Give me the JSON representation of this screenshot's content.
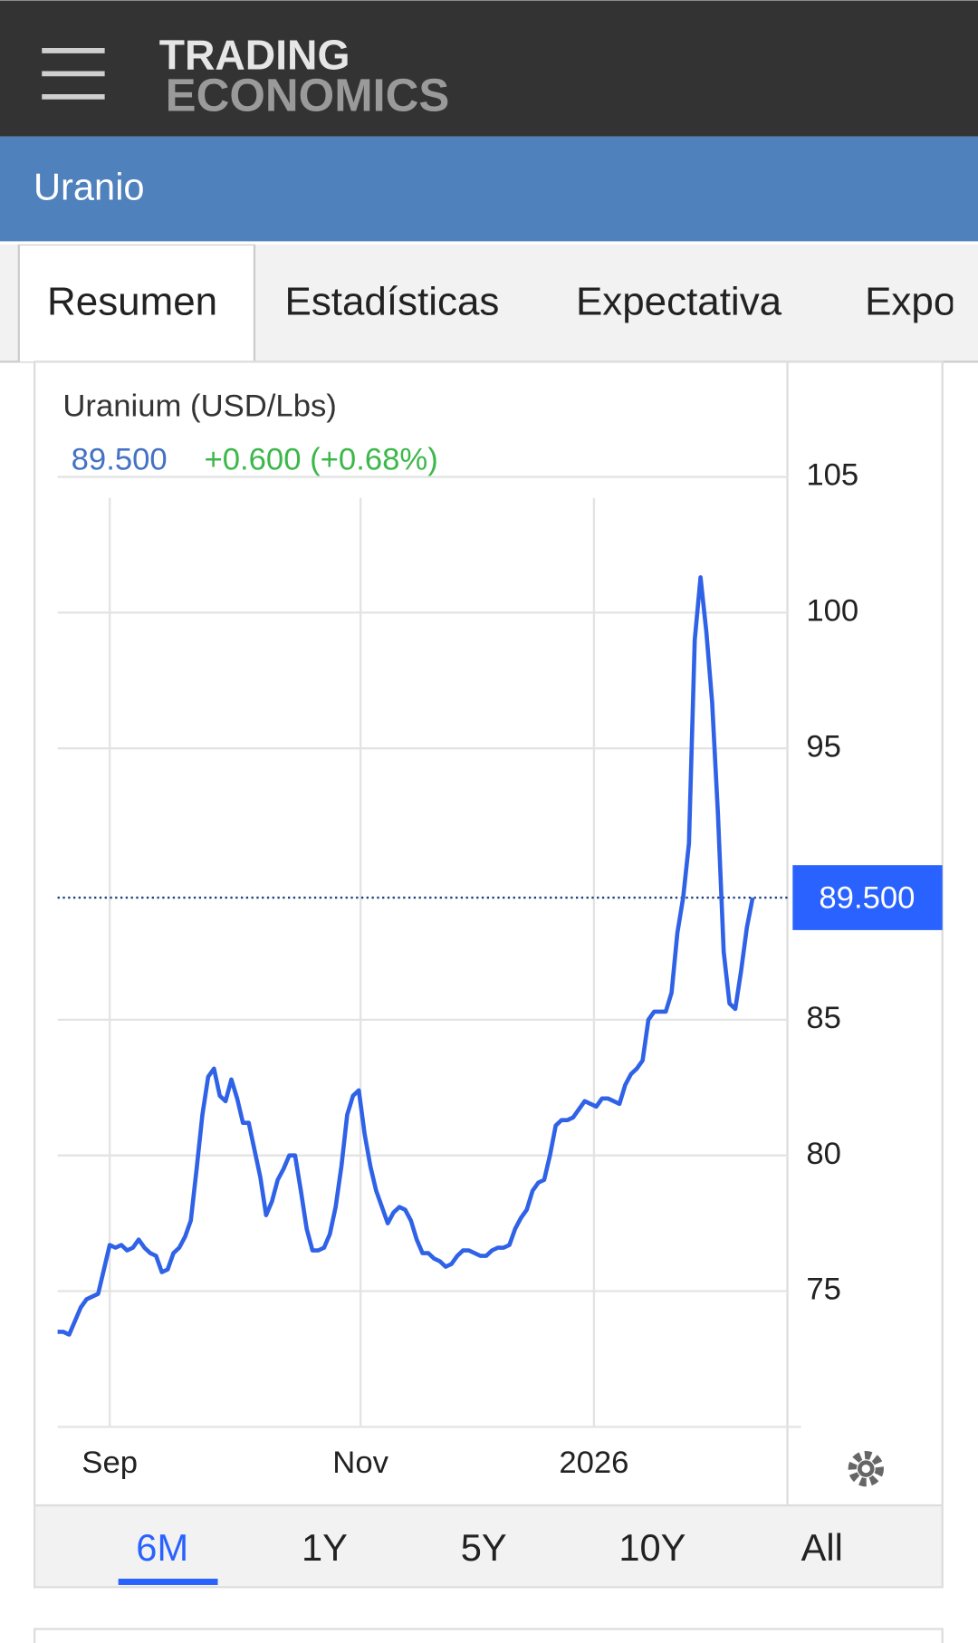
{
  "header": {
    "logo_top": "TRADING",
    "logo_bottom": "ECONOMICS"
  },
  "page_title": "Uranio",
  "tabs": [
    "Resumen",
    "Estadísticas",
    "Expectativa",
    "Expo"
  ],
  "active_tab": 0,
  "chart_data": {
    "type": "line",
    "title": "Uranium (USD/Lbs)",
    "price": "89.500",
    "change": "+0.600 (+0.68%)",
    "series": [
      {
        "name": "Uranium",
        "color": "#2f62e6",
        "values": [
          73.5,
          73.5,
          73.4,
          73.9,
          74.4,
          74.7,
          74.8,
          74.9,
          75.8,
          76.7,
          76.6,
          76.7,
          76.5,
          76.6,
          76.9,
          76.6,
          76.4,
          76.3,
          75.7,
          75.8,
          76.4,
          76.6,
          77.0,
          77.6,
          79.5,
          81.5,
          82.9,
          83.2,
          82.2,
          82.0,
          82.8,
          82.1,
          81.2,
          81.2,
          80.2,
          79.2,
          77.8,
          78.3,
          79.1,
          79.5,
          80.0,
          80.0,
          78.7,
          77.3,
          76.5,
          76.5,
          76.6,
          77.1,
          78.1,
          79.6,
          81.5,
          82.2,
          82.4,
          80.8,
          79.6,
          78.7,
          78.1,
          77.5,
          77.9,
          78.1,
          78.0,
          77.6,
          76.9,
          76.4,
          76.4,
          76.2,
          76.1,
          75.9,
          76.0,
          76.3,
          76.5,
          76.5,
          76.4,
          76.3,
          76.3,
          76.5,
          76.6,
          76.6,
          76.7,
          77.3,
          77.7,
          78.0,
          78.7,
          79.0,
          79.1,
          80.0,
          81.1,
          81.3,
          81.3,
          81.4,
          81.7,
          82.0,
          81.9,
          81.8,
          82.1,
          82.1,
          82.0,
          81.9,
          82.6,
          83.0,
          83.2,
          83.5,
          85.0,
          85.3,
          85.3,
          85.3,
          86.0,
          88.2,
          89.5,
          91.5,
          99.0,
          101.3,
          99.3,
          96.7,
          92.6,
          87.5,
          85.6,
          85.4,
          86.8,
          88.4,
          89.5
        ]
      }
    ],
    "last_price": {
      "value": 89.5,
      "label": "89.500"
    },
    "xlim": [
      0,
      126
    ],
    "xticks": [
      {
        "value": 9,
        "label": "Sep"
      },
      {
        "value": 52.3,
        "label": "Nov"
      },
      {
        "value": 92.6,
        "label": "2026"
      }
    ],
    "ylim": [
      70,
      105
    ],
    "yticks": [
      75,
      80,
      85,
      95,
      100,
      105
    ],
    "grid": true,
    "ranges": [
      "6M",
      "1Y",
      "5Y",
      "10Y",
      "All"
    ],
    "active_range": 0
  }
}
